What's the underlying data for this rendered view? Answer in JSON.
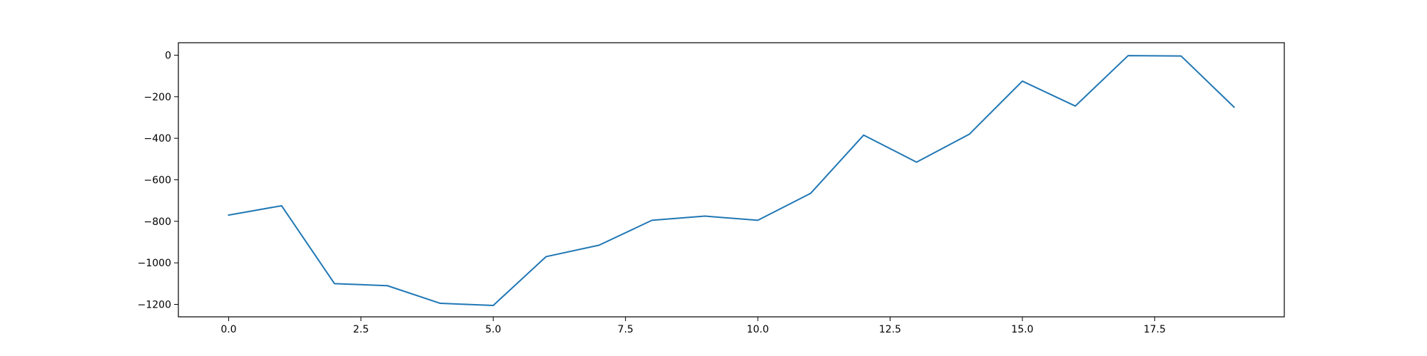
{
  "chart_data": {
    "type": "line",
    "title": "",
    "xlabel": "",
    "ylabel": "",
    "xlim": [
      -0.95,
      19.95
    ],
    "ylim": [
      -1260,
      60
    ],
    "grid": false,
    "x_ticks": [
      0.0,
      2.5,
      5.0,
      7.5,
      10.0,
      12.5,
      15.0,
      17.5
    ],
    "x_tick_labels": [
      "0.0",
      "2.5",
      "5.0",
      "7.5",
      "10.0",
      "12.5",
      "15.0",
      "17.5"
    ],
    "y_ticks": [
      0,
      -200,
      -400,
      -600,
      -800,
      -1000,
      -1200
    ],
    "y_tick_labels": [
      "0",
      "−200",
      "−400",
      "−600",
      "−800",
      "−1000",
      "−1200"
    ],
    "series": [
      {
        "color": "#1f77b4",
        "x": [
          0,
          1,
          2,
          3,
          4,
          5,
          6,
          7,
          8,
          9,
          10,
          11,
          12,
          13,
          14,
          15,
          16,
          17,
          18,
          19
        ],
        "values": [
          -770,
          -725,
          -1100,
          -1110,
          -1195,
          -1205,
          -970,
          -915,
          -795,
          -775,
          -795,
          -665,
          -385,
          -515,
          -380,
          -125,
          -245,
          -2,
          -4,
          -250
        ]
      }
    ]
  }
}
